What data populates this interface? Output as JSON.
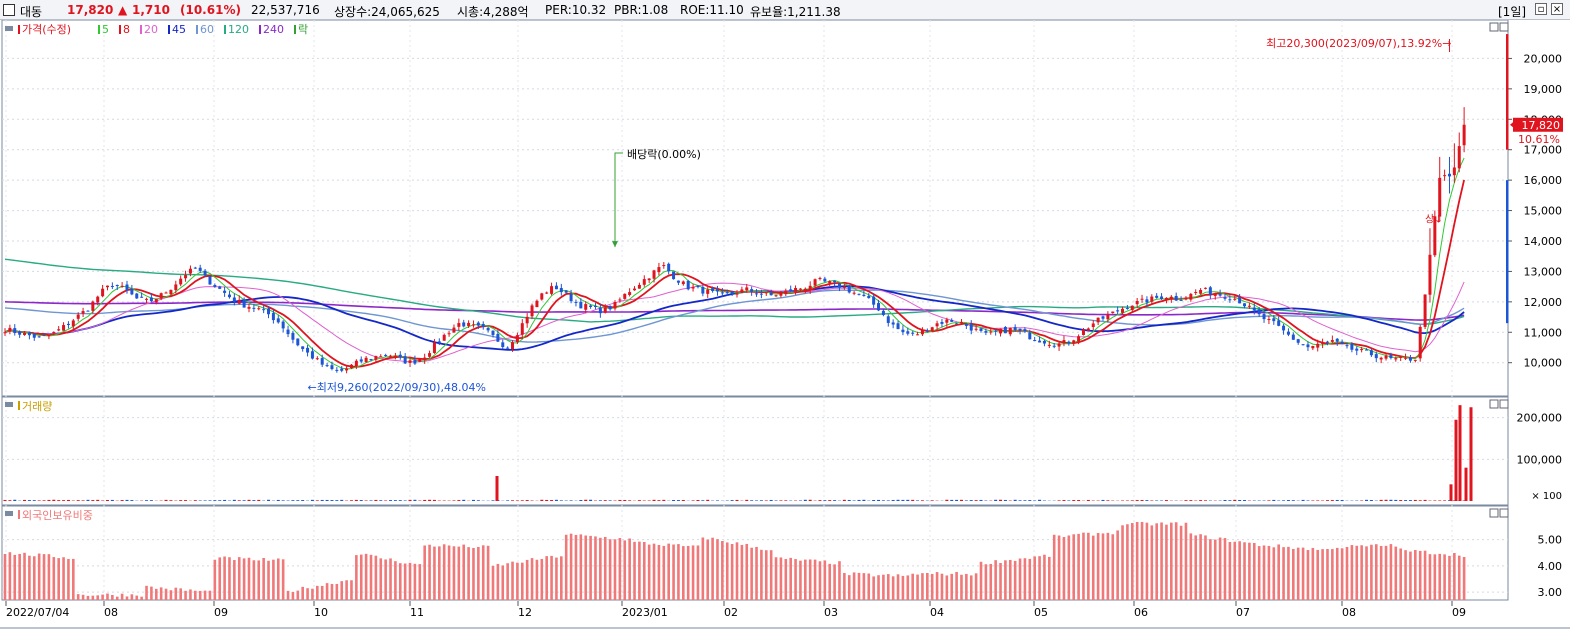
{
  "header": {
    "stock_name": "대동",
    "price": "17,820",
    "change_arrow": "▲",
    "change": "1,710",
    "change_pct": "(10.61%)",
    "volume": "22,537,716",
    "listed_shares": "상장수:24,065,625",
    "market_cap": "시총:4,288억",
    "per": "PER:10.32",
    "pbr": "PBR:1.08",
    "roe": "ROE:11.10",
    "retention": "유보율:1,211.38",
    "period": "[1일]"
  },
  "colors": {
    "up": "#e0141e",
    "down": "#1c56d6",
    "ma5": "#32c832",
    "ma8": "#e0141e",
    "ma20": "#e060d0",
    "ma45": "#1428c8",
    "ma60": "#6e96d2",
    "ma120": "#28aa82",
    "ma240": "#8c28c8"
  },
  "chart_data": [
    {
      "type": "candlestick",
      "legend": [
        {
          "label": "가격(수정)",
          "color": "#e0141e"
        },
        {
          "label": "5",
          "color": "#32c832"
        },
        {
          "label": "8",
          "color": "#e0141e"
        },
        {
          "label": "20",
          "color": "#e060d0"
        },
        {
          "label": "45",
          "color": "#1428c8"
        },
        {
          "label": "60",
          "color": "#6e96d2"
        },
        {
          "label": "120",
          "color": "#28aa82"
        },
        {
          "label": "240",
          "color": "#8c28c8"
        },
        {
          "label": "락",
          "color": "#32a032"
        }
      ],
      "ylim": [
        9300,
        21000
      ],
      "yticks": [
        "10,000",
        "11,000",
        "12,000",
        "13,000",
        "14,000",
        "15,000",
        "16,000",
        "17,000",
        "18,000",
        "19,000",
        "20,000"
      ],
      "price_label": "17,820",
      "price_label_value": 17820,
      "pct_label": "10.61%",
      "annotations": {
        "high": "최고20,300(2023/09/07),13.92%",
        "low": "최저9,260(2022/09/30),48.04%",
        "dividend": "배당락(0.00%)",
        "limit_up": "상"
      },
      "close_path": [
        11100,
        11000,
        10900,
        10800,
        10950,
        11200,
        11500,
        11800,
        12300,
        12600,
        12400,
        12100,
        12000,
        12200,
        12500,
        12900,
        13100,
        12700,
        12400,
        12100,
        11900,
        11800,
        11600,
        11300,
        10800,
        10400,
        10100,
        9800,
        9700,
        9900,
        10100,
        10200,
        10300,
        10100,
        10000,
        10200,
        10600,
        11000,
        11300,
        11200,
        11100,
        10800,
        10500,
        11100,
        11800,
        12300,
        12500,
        12200,
        11900,
        11800,
        11700,
        11900,
        12300,
        12600,
        12900,
        13200,
        12800,
        12500,
        12400,
        12300,
        12200,
        12300,
        12400,
        12300,
        12200,
        12300,
        12400,
        12500,
        12700,
        12600,
        12500,
        12300,
        12100,
        11800,
        11300,
        11000,
        10900,
        11100,
        11300,
        11400,
        11300,
        11100,
        10900,
        11000,
        11100,
        11000,
        10800,
        10700,
        10600,
        10700,
        11000,
        11300,
        11500,
        11700,
        11900,
        12000,
        12100,
        12200,
        12100,
        12200,
        12400,
        12300,
        12200,
        12100,
        11800,
        11500,
        11300,
        11000,
        10700,
        10500,
        10600,
        10700,
        10500,
        10400,
        10300,
        10200,
        10100,
        10100,
        10150,
        13100,
        16200,
        16100,
        17820
      ]
    },
    {
      "type": "bar",
      "legend": [
        {
          "label": "거래량",
          "color": "#c8a000"
        }
      ],
      "ylim": [
        0,
        240000
      ],
      "yticks": [
        "100,000",
        "200,000"
      ],
      "unit_label": "× 100",
      "spikes": [
        {
          "index": 497,
          "value": 60000
        },
        {
          "index": 1451,
          "value": 40000
        },
        {
          "index": 1456,
          "value": 195000
        },
        {
          "index": 1460,
          "value": 230000
        },
        {
          "index": 1466,
          "value": 80000
        },
        {
          "index": 1471,
          "value": 225000
        }
      ]
    },
    {
      "type": "bar",
      "legend": [
        {
          "label": "외국인보유비중",
          "color": "#f07878"
        }
      ],
      "ylim": [
        2.7,
        5.9
      ],
      "yticks": [
        "3.00",
        "4.00",
        "5.00"
      ],
      "segments": [
        [
          4.5,
          4.3
        ],
        [
          2.9,
          2.9
        ],
        [
          3.2,
          3.0
        ],
        [
          4.3,
          4.2
        ],
        [
          3.0,
          3.5
        ],
        [
          4.5,
          4.0
        ],
        [
          4.8,
          4.7
        ],
        [
          4.0,
          4.4
        ],
        [
          5.2,
          5.0
        ],
        [
          4.9,
          4.7
        ],
        [
          5.1,
          4.6
        ],
        [
          4.3,
          4.1
        ],
        [
          3.7,
          3.6
        ],
        [
          3.7,
          3.7
        ],
        [
          4.1,
          4.4
        ],
        [
          5.1,
          5.3
        ],
        [
          5.6,
          5.6
        ],
        [
          5.2,
          4.8
        ],
        [
          4.8,
          4.6
        ],
        [
          4.7,
          4.8
        ],
        [
          4.6,
          4.4
        ]
      ]
    }
  ],
  "xaxis": {
    "labels": [
      "2022/07/04",
      "08",
      "09",
      "10",
      "11",
      "12",
      "2023/01",
      "02",
      "03",
      "04",
      "05",
      "06",
      "07",
      "08",
      "09"
    ]
  }
}
